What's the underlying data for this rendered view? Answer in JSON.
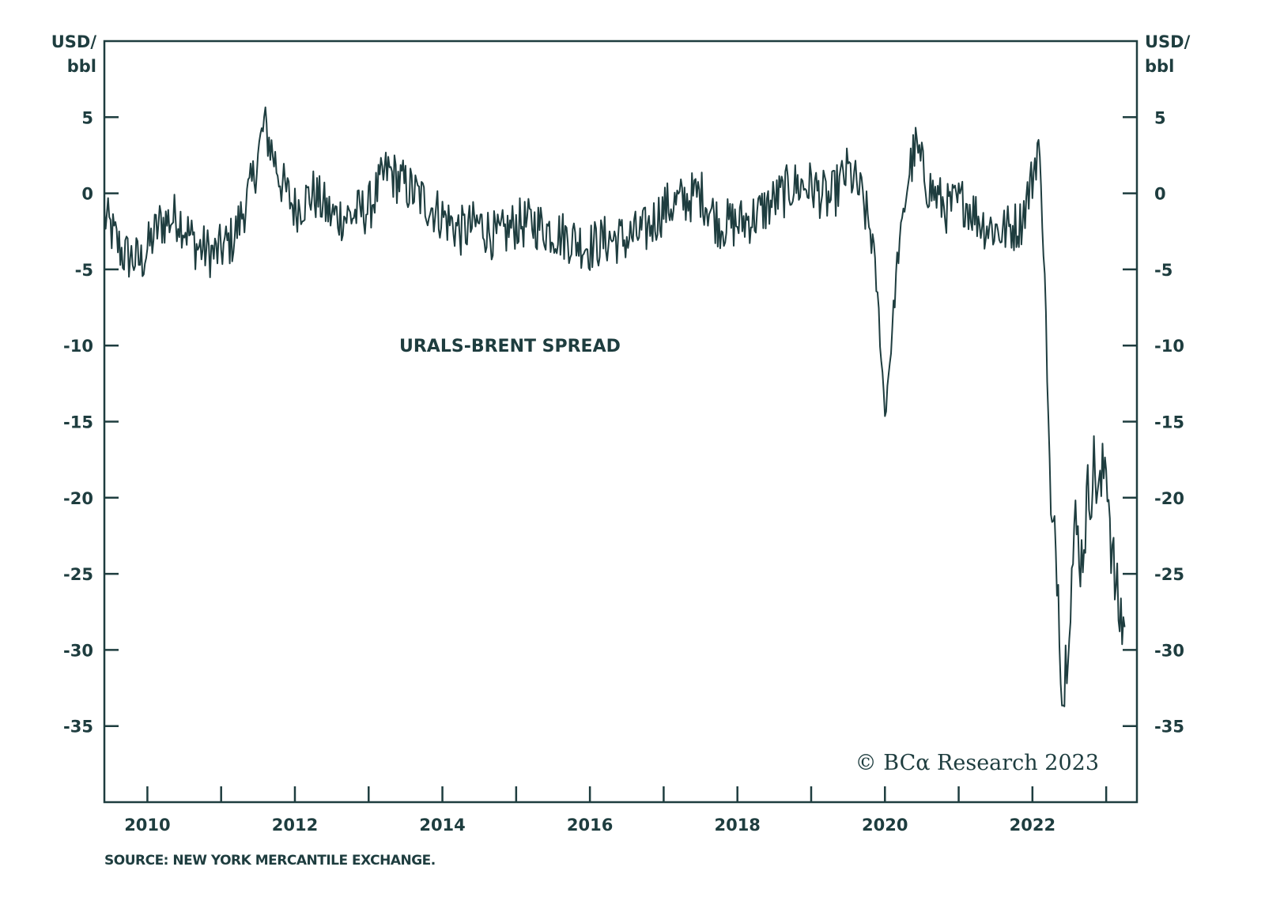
{
  "chart_data": {
    "type": "line",
    "title": "",
    "series": [
      {
        "name": "URALS-BRENT SPREAD",
        "color": "#1e3d3f"
      }
    ],
    "x_ticks": [
      "2010",
      "2012",
      "2014",
      "2016",
      "2018",
      "2020",
      "2022"
    ],
    "y_ticks": [
      "5",
      "0",
      "-5",
      "-10",
      "-15",
      "-20",
      "-25",
      "-30",
      "-35"
    ],
    "ylim": [
      -40,
      10
    ],
    "xlim": [
      "2009-06",
      "2023-06"
    ],
    "left_unit": [
      "USD/",
      "bbl"
    ],
    "right_unit": [
      "USD/",
      "bbl"
    ],
    "annotation": "URALS-BRENT SPREAD",
    "source": "SOURCE: NEW YORK MERCANTILE EXCHANGE.",
    "copyright": "© BCα Research 2023",
    "keypoints": [
      [
        "2009-06",
        -1.5
      ],
      [
        "2009-09",
        -4.0
      ],
      [
        "2009-12",
        -4.5
      ],
      [
        "2010-03",
        -2.0
      ],
      [
        "2010-06",
        -1.5
      ],
      [
        "2010-09",
        -3.5
      ],
      [
        "2010-12",
        -4.0
      ],
      [
        "2011-03",
        -3.0
      ],
      [
        "2011-06",
        0.5
      ],
      [
        "2011-08",
        4.5
      ],
      [
        "2011-11",
        0.5
      ],
      [
        "2012-01",
        -1.0
      ],
      [
        "2012-04",
        0.0
      ],
      [
        "2012-07",
        -1.5
      ],
      [
        "2012-10",
        -1.5
      ],
      [
        "2013-01",
        -1.0
      ],
      [
        "2013-04",
        1.5
      ],
      [
        "2013-07",
        0.5
      ],
      [
        "2013-10",
        -0.5
      ],
      [
        "2014-01",
        -1.5
      ],
      [
        "2014-04",
        -2.5
      ],
      [
        "2014-07",
        -2.0
      ],
      [
        "2014-10",
        -3.0
      ],
      [
        "2015-01",
        -2.0
      ],
      [
        "2015-04",
        -2.0
      ],
      [
        "2015-07",
        -2.5
      ],
      [
        "2015-10",
        -3.0
      ],
      [
        "2016-01",
        -3.5
      ],
      [
        "2016-04",
        -3.0
      ],
      [
        "2016-07",
        -3.0
      ],
      [
        "2016-10",
        -2.5
      ],
      [
        "2017-01",
        -1.0
      ],
      [
        "2017-04",
        -0.5
      ],
      [
        "2017-07",
        0.0
      ],
      [
        "2017-10",
        -2.0
      ],
      [
        "2018-01",
        -2.0
      ],
      [
        "2018-04",
        -1.5
      ],
      [
        "2018-07",
        -0.5
      ],
      [
        "2018-10",
        0.5
      ],
      [
        "2019-01",
        0.5
      ],
      [
        "2019-04",
        -0.5
      ],
      [
        "2019-07",
        1.5
      ],
      [
        "2019-09",
        0.0
      ],
      [
        "2019-11",
        -3.0
      ],
      [
        "2019-12",
        -8.0
      ],
      [
        "2020-01",
        -14.5
      ],
      [
        "2020-02",
        -10.0
      ],
      [
        "2020-03",
        -4.5
      ],
      [
        "2020-05",
        1.5
      ],
      [
        "2020-06",
        3.0
      ],
      [
        "2020-08",
        0.5
      ],
      [
        "2020-11",
        -1.0
      ],
      [
        "2021-02",
        -0.5
      ],
      [
        "2021-05",
        -2.0
      ],
      [
        "2021-08",
        -2.5
      ],
      [
        "2021-11",
        -2.0
      ],
      [
        "2022-01",
        1.0
      ],
      [
        "2022-02",
        3.5
      ],
      [
        "2022-03",
        -5.0
      ],
      [
        "2022-04",
        -22.0
      ],
      [
        "2022-05",
        -24.0
      ],
      [
        "2022-06",
        -33.5
      ],
      [
        "2022-07",
        -27.0
      ],
      [
        "2022-08",
        -22.0
      ],
      [
        "2022-09",
        -24.0
      ],
      [
        "2022-10",
        -20.0
      ],
      [
        "2022-11",
        -18.0
      ],
      [
        "2022-12",
        -20.0
      ],
      [
        "2023-01",
        -17.0
      ],
      [
        "2023-02",
        -24.0
      ],
      [
        "2023-03",
        -27.5
      ],
      [
        "2023-04",
        -28.5
      ]
    ]
  }
}
